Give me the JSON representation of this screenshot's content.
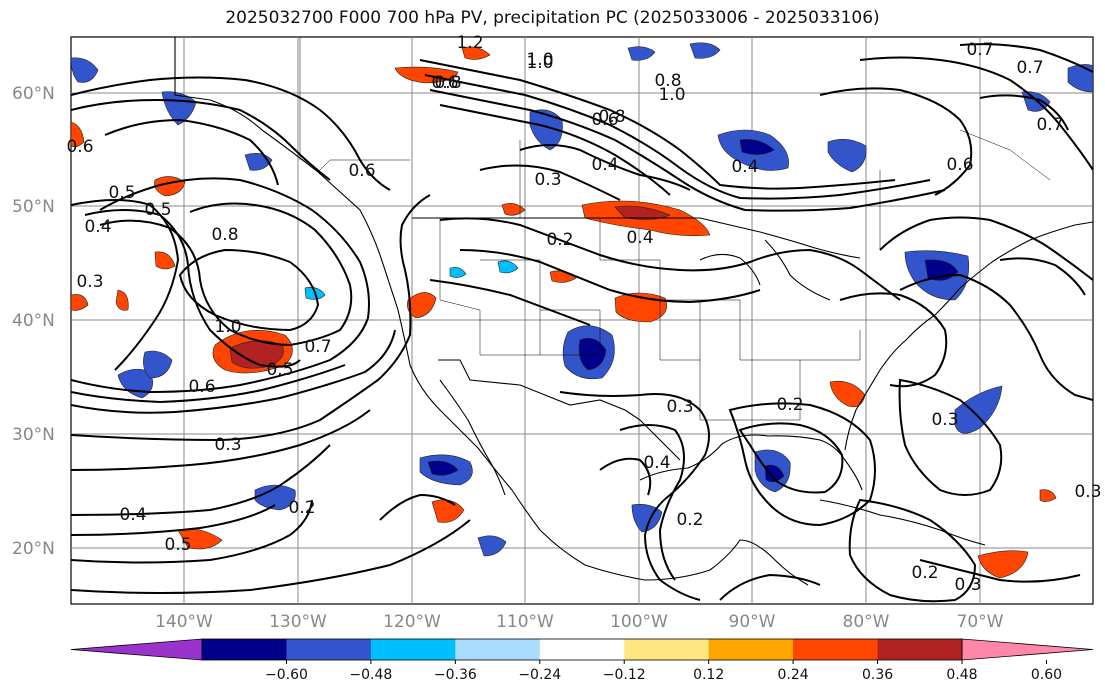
{
  "title": "2025032700 F000 700 hPa PV, precipitation PC (2025033006 - 2025033106)",
  "lat_labels": [
    "60°N",
    "50°N",
    "40°N",
    "30°N",
    "20°N"
  ],
  "lon_labels": [
    "140°W",
    "130°W",
    "120°W",
    "110°W",
    "100°W",
    "90°W",
    "80°W",
    "70°W"
  ],
  "colorbar": {
    "ticks": [
      "−0.60",
      "−0.48",
      "−0.36",
      "−0.24",
      "−0.12",
      "0.12",
      "0.24",
      "0.36",
      "0.48",
      "0.60"
    ],
    "colors": [
      "#9933cc",
      "#00008b",
      "#3355cc",
      "#00bfff",
      "#aadcff",
      "#ffffff",
      "#ffe680",
      "#ffa500",
      "#ff4500",
      "#b22222",
      "#ff88aa"
    ]
  },
  "contour_labels": [
    "1.2",
    "1.0",
    "0.8",
    "0.7",
    "0.7",
    "0.8",
    "0.6",
    "0.6",
    "0.6",
    "0.5",
    "0.5",
    "0.8",
    "0.4",
    "0.3",
    "1.0",
    "0.7",
    "0.5",
    "0.6",
    "0.3",
    "0.4",
    "0.2",
    "0.4",
    "0.8",
    "0.7",
    "0.4",
    "0.6",
    "1.0",
    "0.3",
    "0.2",
    "0.4",
    "0.2",
    "0.5",
    "0.3",
    "0.2",
    "0.3",
    "0.4",
    "0.2",
    "0.3",
    "0.3",
    "1.0",
    "0.6"
  ]
}
